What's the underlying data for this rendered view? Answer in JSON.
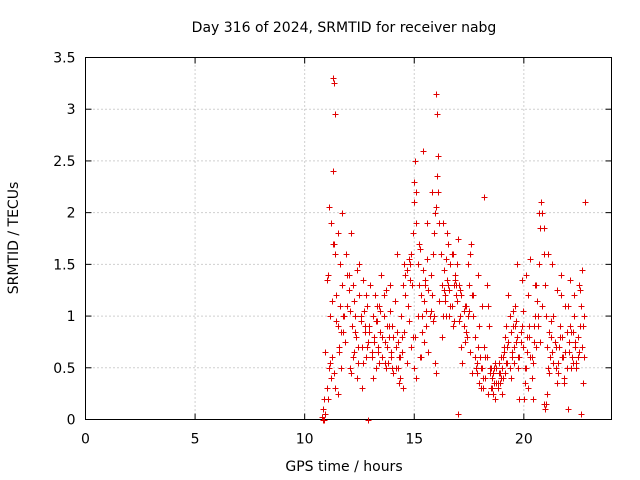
{
  "chart_data": {
    "type": "scatter",
    "title": "Day 316 of 2024, SRMTID for receiver nabg",
    "xlabel": "GPS time / hours",
    "ylabel": "SRMTID / TECUs",
    "xlim": [
      0,
      24
    ],
    "ylim": [
      0,
      3.5
    ],
    "xticks": [
      0,
      5,
      10,
      15,
      20
    ],
    "yticks": [
      0,
      0.5,
      1,
      1.5,
      2,
      2.5,
      3,
      3.5
    ],
    "xtick_labels": [
      "0",
      "5",
      "10",
      "15",
      "20"
    ],
    "ytick_labels": [
      "0",
      "0.5",
      "1",
      "1.5",
      "2",
      "2.5",
      "3",
      "3.5"
    ],
    "grid": true,
    "marker": "+",
    "color": "#e00000",
    "series": [
      {
        "name": "SRMTID",
        "x": [
          10.8,
          10.85,
          10.9,
          10.95,
          11.0,
          11.05,
          11.1,
          11.15,
          11.2,
          11.25,
          11.3,
          11.35,
          11.4,
          11.45,
          11.5,
          11.55,
          11.6,
          11.65,
          11.7,
          11.75,
          11.8,
          11.85,
          11.9,
          11.95,
          12.0,
          12.05,
          12.1,
          12.15,
          12.2,
          12.25,
          12.3,
          12.35,
          12.4,
          12.45,
          12.5,
          12.55,
          12.6,
          12.65,
          12.7,
          12.75,
          12.8,
          12.85,
          12.9,
          12.95,
          13.0,
          13.05,
          13.1,
          13.15,
          13.2,
          13.25,
          13.3,
          13.35,
          13.4,
          13.45,
          13.5,
          13.55,
          13.6,
          13.65,
          13.7,
          13.75,
          13.8,
          13.85,
          13.9,
          13.95,
          14.0,
          14.05,
          14.1,
          14.15,
          14.2,
          14.25,
          14.3,
          14.35,
          14.4,
          14.45,
          14.5,
          14.55,
          14.6,
          14.65,
          14.7,
          14.75,
          14.8,
          14.85,
          14.9,
          14.95,
          15.0,
          15.05,
          15.1,
          15.15,
          15.2,
          15.25,
          15.3,
          15.35,
          15.4,
          15.45,
          15.5,
          15.55,
          15.6,
          15.65,
          15.7,
          15.75,
          15.8,
          15.85,
          15.9,
          15.95,
          16.0,
          16.05,
          16.1,
          16.15,
          16.2,
          16.25,
          16.3,
          16.35,
          16.4,
          16.45,
          16.5,
          16.55,
          16.6,
          16.65,
          16.7,
          16.75,
          16.8,
          16.85,
          16.9,
          16.95,
          17.0,
          17.05,
          17.1,
          17.15,
          17.2,
          17.25,
          17.3,
          17.35,
          17.4,
          17.45,
          17.5,
          17.55,
          17.6,
          17.65,
          17.7,
          17.75,
          17.8,
          17.85,
          17.9,
          17.95,
          18.0,
          18.05,
          18.1,
          18.15,
          18.2,
          18.25,
          18.3,
          18.35,
          18.4,
          18.45,
          18.5,
          18.55,
          18.6,
          18.65,
          18.7,
          18.75,
          18.8,
          18.85,
          18.9,
          18.95,
          19.0,
          19.05,
          19.1,
          19.15,
          19.2,
          19.25,
          19.3,
          19.35,
          19.4,
          19.45,
          19.5,
          19.55,
          19.6,
          19.65,
          19.7,
          19.75,
          19.8,
          19.85,
          19.9,
          19.95,
          20.0,
          20.05,
          20.1,
          20.15,
          20.2,
          20.25,
          20.3,
          20.35,
          20.4,
          20.45,
          20.5,
          20.55,
          20.6,
          20.65,
          20.7,
          20.75,
          20.8,
          20.85,
          20.9,
          20.95,
          21.0,
          21.05,
          21.1,
          21.15,
          21.2,
          21.25,
          21.3,
          21.35,
          21.4,
          21.45,
          21.5,
          21.55,
          21.6,
          21.65,
          21.7,
          21.75,
          21.8,
          21.85,
          21.9,
          21.95,
          22.0,
          22.05,
          22.1,
          22.15,
          22.2,
          22.25,
          22.3,
          22.35,
          22.4,
          22.45,
          22.5,
          22.55,
          22.6,
          22.65,
          22.7,
          22.75,
          22.8,
          11.2,
          11.3,
          11.35,
          11.4,
          11.5,
          11.6,
          11.7,
          12.0,
          12.2,
          12.5,
          12.8,
          13.0,
          13.3,
          13.6,
          13.9,
          14.2,
          14.4,
          14.6,
          14.8,
          15.0,
          15.1,
          15.2,
          15.4,
          15.6,
          15.8,
          15.9,
          16.0,
          16.1,
          16.3,
          16.5,
          16.7,
          16.9,
          17.1,
          17.3,
          17.5,
          17.7,
          17.9,
          18.1,
          18.3,
          18.5,
          18.7,
          18.9,
          19.1,
          19.3,
          19.5,
          19.7,
          19.9,
          20.1,
          20.3,
          20.5,
          20.7,
          20.9,
          21.1,
          21.3,
          21.5,
          21.7,
          21.9,
          22.1,
          22.3,
          22.5,
          22.7,
          11.35,
          11.4,
          11.45,
          15.0,
          15.05,
          15.1,
          15.9,
          15.95,
          16.0,
          16.05,
          18.2,
          11.25,
          11.3,
          11.5,
          12.1,
          12.3,
          15.3,
          15.5,
          16.4,
          16.6,
          16.8,
          17.0,
          20.95,
          21.0,
          21.05,
          20.9,
          22.0,
          22.4,
          22.6,
          19.6,
          19.8,
          20.2,
          20.4,
          18.6,
          18.8,
          19.0,
          19.2,
          19.4,
          14.0,
          14.3,
          14.5,
          13.1,
          13.4,
          13.7,
          12.4,
          12.6,
          12.9,
          10.85,
          10.9,
          10.95,
          11.0,
          11.05,
          11.1,
          11.15,
          11.55,
          11.65,
          11.75,
          11.85,
          11.95,
          12.05,
          12.15,
          12.25,
          12.35,
          12.45,
          12.55,
          12.65,
          12.75,
          12.85,
          12.95,
          13.05,
          13.15,
          13.25,
          13.35,
          13.45,
          13.55,
          13.65,
          13.75,
          13.85,
          13.95,
          14.05,
          14.15,
          14.25,
          14.35,
          14.45,
          14.55,
          14.65,
          14.75,
          14.85,
          14.95,
          15.15,
          15.25,
          15.35,
          15.45,
          15.55,
          15.65,
          15.75,
          15.85,
          16.15,
          16.25,
          16.35,
          16.45,
          16.55,
          16.65,
          16.75,
          16.85,
          16.95,
          17.05,
          17.15,
          17.25,
          17.35,
          17.45,
          17.55,
          17.65,
          17.75,
          17.85,
          17.95,
          18.05,
          18.15,
          18.25,
          18.35,
          18.45,
          18.55,
          18.65,
          18.75,
          18.85,
          18.95,
          19.05,
          19.15,
          19.25,
          19.35,
          19.45,
          19.55,
          19.65,
          19.75,
          19.85,
          19.95,
          20.05,
          20.15,
          20.25,
          20.35,
          20.45,
          20.55,
          20.65,
          20.75,
          20.85,
          21.15,
          21.25,
          21.35,
          21.45,
          21.55,
          21.65,
          21.75,
          21.85,
          21.95,
          22.05,
          22.15,
          22.25,
          22.35,
          22.45,
          22.55,
          22.65,
          22.75
        ],
        "y": [
          0.02,
          0.1,
          0.2,
          0.65,
          1.35,
          1.4,
          2.05,
          1.0,
          0.4,
          0.6,
          3.3,
          3.25,
          2.95,
          1.2,
          0.9,
          0.7,
          1.1,
          0.5,
          1.3,
          0.85,
          1.0,
          0.75,
          1.6,
          1.4,
          1.25,
          1.05,
          1.8,
          0.9,
          0.6,
          1.15,
          1.0,
          0.8,
          1.45,
          0.55,
          1.2,
          0.95,
          0.7,
          1.35,
          1.05,
          0.85,
          0.6,
          1.1,
          0.75,
          0.9,
          1.3,
          0.65,
          1.0,
          0.8,
          1.2,
          0.5,
          0.95,
          0.7,
          1.1,
          0.85,
          1.4,
          0.6,
          1.0,
          0.75,
          1.25,
          0.9,
          0.55,
          0.8,
          1.05,
          0.65,
          0.9,
          0.45,
          1.15,
          0.7,
          0.85,
          0.5,
          0.35,
          0.6,
          1.0,
          0.8,
          1.3,
          1.5,
          1.2,
          1.45,
          1.1,
          1.55,
          1.35,
          1.6,
          1.3,
          1.8,
          2.1,
          2.5,
          2.2,
          1.5,
          1.3,
          1.65,
          1.2,
          1.0,
          1.45,
          1.15,
          1.35,
          1.05,
          1.55,
          1.25,
          1.0,
          1.4,
          1.2,
          1.6,
          1.8,
          2.0,
          3.15,
          2.95,
          2.55,
          1.9,
          1.6,
          1.3,
          1.0,
          1.45,
          1.2,
          1.55,
          1.35,
          1.7,
          1.25,
          1.5,
          1.1,
          1.6,
          1.3,
          1.4,
          1.2,
          1.5,
          1.75,
          1.3,
          1.0,
          0.7,
          0.55,
          0.9,
          0.75,
          1.1,
          0.8,
          1.5,
          1.3,
          1.6,
          1.7,
          1.2,
          1.0,
          0.6,
          0.5,
          0.45,
          0.7,
          0.9,
          0.6,
          0.3,
          0.5,
          0.4,
          0.7,
          0.6,
          1.3,
          1.1,
          0.9,
          0.5,
          0.3,
          0.4,
          0.25,
          0.35,
          0.2,
          0.5,
          0.3,
          0.45,
          0.35,
          0.6,
          0.5,
          0.4,
          0.7,
          0.8,
          0.9,
          0.55,
          0.75,
          1.0,
          0.85,
          0.6,
          0.9,
          0.7,
          1.1,
          0.95,
          0.8,
          0.5,
          0.6,
          0.75,
          0.9,
          1.05,
          0.2,
          0.35,
          0.5,
          0.8,
          1.2,
          0.9,
          0.6,
          0.4,
          0.55,
          0.75,
          1.0,
          1.3,
          1.15,
          0.9,
          1.5,
          1.85,
          2.1,
          2.0,
          1.6,
          1.3,
          1.0,
          0.7,
          0.5,
          0.45,
          0.6,
          0.8,
          0.65,
          1.0,
          0.75,
          0.5,
          0.35,
          0.55,
          0.7,
          0.9,
          1.2,
          0.8,
          0.6,
          0.4,
          0.65,
          0.85,
          1.1,
          0.75,
          0.9,
          0.5,
          0.6,
          0.85,
          1.0,
          0.7,
          0.55,
          0.8,
          0.65,
          1.25,
          1.1,
          1.45,
          0.9,
          0.6,
          2.1,
          1.9,
          2.4,
          1.7,
          1.6,
          1.8,
          1.5,
          2.0,
          1.4,
          1.3,
          1.5,
          1.2,
          1.3,
          1.1,
          1.2,
          1.3,
          1.6,
          1.0,
          1.4,
          1.5,
          2.3,
          1.9,
          1.7,
          2.6,
          1.9,
          2.2,
          1.8,
          2.05,
          2.2,
          1.9,
          1.8,
          1.6,
          1.3,
          1.25,
          1.1,
          1.05,
          1.2,
          1.4,
          1.1,
          0.6,
          0.5,
          0.55,
          0.45,
          0.65,
          1.2,
          1.05,
          1.5,
          1.35,
          1.4,
          1.55,
          1.3,
          2.0,
          1.85,
          1.6,
          1.5,
          1.25,
          1.4,
          1.1,
          1.35,
          1.2,
          1.3,
          0.35,
          0.45,
          0.3,
          0.95,
          0.5,
          0.8,
          0.4,
          1.0,
          0.55,
          0.45,
          2.35,
          2.15,
          1.15,
          1.7,
          0.25,
          0.45,
          0.85,
          0.6,
          1.3,
          1.15,
          1.0,
          0.95,
          0.05,
          0.1,
          0.15,
          0.25,
          0.15,
          0.1,
          0.5,
          0.05,
          0.9,
          0.2,
          0.3,
          0.2,
          0.45,
          0.35,
          0.25,
          0.55,
          0.4,
          0.5,
          0.6,
          0.3,
          0.4,
          0.55,
          0.5,
          0.4,
          0.3,
          0.0,
          0.0,
          0.0,
          0.05,
          0.3,
          0.2,
          0.5,
          0.55,
          0.65,
          0.85,
          1.0,
          0.75,
          1.1,
          0.5,
          0.9,
          0.65,
          0.8,
          0.7,
          1.0,
          0.55,
          0.9,
          0.7,
          0.85,
          0.6,
          0.75,
          0.95,
          0.65,
          1.05,
          0.8,
          0.55,
          0.7,
          0.9,
          0.6,
          0.8,
          0.5,
          0.75,
          0.4,
          0.65,
          0.85,
          0.55,
          0.95,
          0.7,
          0.8,
          1.0,
          0.6,
          0.85,
          0.75,
          0.9,
          0.65,
          1.05,
          0.95,
          1.15,
          0.8,
          1.25,
          1.0,
          1.3,
          1.1,
          0.9,
          1.35,
          1.15,
          0.95,
          1.2,
          1.05,
          0.85,
          1.0,
          0.65,
          0.45,
          0.8,
          0.55,
          0.35,
          0.5,
          0.3,
          0.4,
          0.25,
          0.45,
          0.3,
          0.5,
          0.35,
          0.55,
          0.4,
          0.6,
          0.45,
          0.7,
          0.5,
          0.65,
          0.55,
          0.75,
          0.6,
          0.85,
          0.7,
          0.5,
          0.65,
          0.8,
          0.6,
          0.9,
          0.7,
          1.0,
          0.75,
          1.1,
          0.85,
          0.95,
          0.55,
          0.7,
          0.45,
          0.8,
          0.6,
          0.35,
          0.5,
          0.65,
          0.85,
          0.55,
          0.75,
          0.6,
          0.9,
          0.7,
          1.0
        ]
      }
    ]
  }
}
